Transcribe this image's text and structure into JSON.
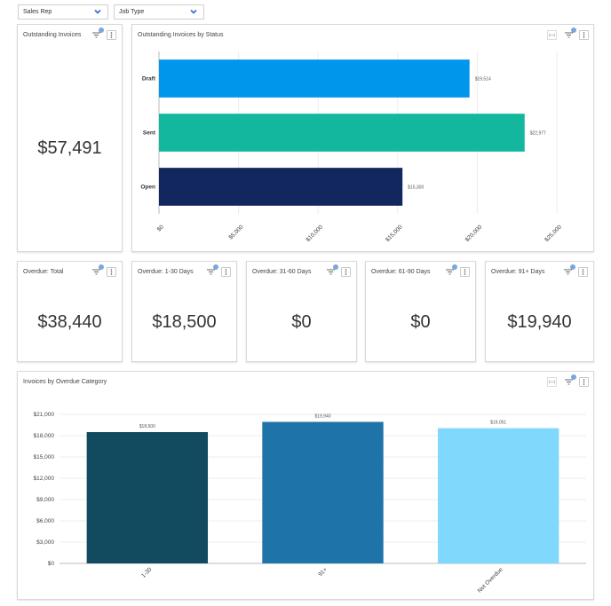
{
  "filters": {
    "sales_rep": "Sales Rep",
    "job_type": "Job Type"
  },
  "outstanding_invoices": {
    "title": "Outstanding Invoices",
    "value": "$57,491"
  },
  "status_chart": {
    "title": "Outstanding Invoices by Status"
  },
  "overdue_cards": [
    {
      "title": "Overdue: Total",
      "value": "$38,440"
    },
    {
      "title": "Overdue: 1-30 Days",
      "value": "$18,500"
    },
    {
      "title": "Overdue: 31-60 Days",
      "value": "$0"
    },
    {
      "title": "Overdue: 61-90 Days",
      "value": "$0"
    },
    {
      "title": "Overdue: 91+ Days",
      "value": "$19,940"
    }
  ],
  "category_chart": {
    "title": "Invoices by Overdue Category"
  },
  "icons": {
    "filter": "filter-icon",
    "more": "more-vertical-icon",
    "expand": "expand-icon",
    "dropdown": "chevron-down-icon"
  },
  "chart_data": [
    {
      "type": "bar",
      "orientation": "horizontal",
      "categories": [
        "Draft",
        "Sent",
        "Open"
      ],
      "values": [
        19514,
        22977,
        15300
      ],
      "data_labels": [
        "$19,514",
        "$22,977",
        "$15,300"
      ],
      "colors": [
        "#0096ec",
        "#13b79e",
        "#12275e"
      ],
      "xlim": [
        0,
        25000
      ],
      "xticks": [
        "$0",
        "$5,000",
        "$10,000",
        "$15,000",
        "$20,000",
        "$25,000"
      ],
      "grid": true
    },
    {
      "type": "bar",
      "orientation": "vertical",
      "categories": [
        "1-30",
        "91+",
        "Not Overdue"
      ],
      "values": [
        18500,
        19940,
        19051
      ],
      "data_labels": [
        "$18,500",
        "$19,940",
        "$19,051"
      ],
      "colors": [
        "#124b60",
        "#1e73a9",
        "#80d9fd"
      ],
      "ylim": [
        0,
        21000
      ],
      "yticks": [
        "$0",
        "$3,000",
        "$6,000",
        "$9,000",
        "$12,000",
        "$15,000",
        "$18,000",
        "$21,000"
      ],
      "grid": true
    }
  ]
}
